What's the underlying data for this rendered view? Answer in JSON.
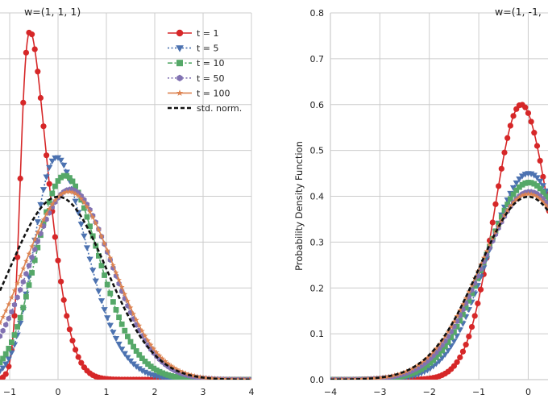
{
  "figure": {
    "background": "#ffffff",
    "grid_color": "#cccccc",
    "axis_color": "#cccccc"
  },
  "chart_data": [
    {
      "type": "line",
      "title": "w=(1, 1, 1)",
      "xlabel": "",
      "ylabel": "",
      "xlim": [
        -1.2,
        4
      ],
      "ylim": [
        0,
        0.8
      ],
      "xticks": [
        -1,
        0,
        1,
        2,
        3,
        4
      ],
      "xtick_labels": [
        "−1",
        "0",
        "1",
        "2",
        "3",
        "4"
      ],
      "yticks": [],
      "grid": true,
      "legend_position": "top-right",
      "series": [
        {
          "name": "t = 1",
          "color": "#d62728",
          "marker": "circle",
          "linestyle": "solid",
          "mean": -0.78,
          "sd": 0.5,
          "skew": 1.0,
          "peak": 0.76
        },
        {
          "name": "t = 5",
          "color": "#4c72b0",
          "marker": "triangle-down",
          "linestyle": "dotted",
          "mean": -0.45,
          "sd": 0.83,
          "skew": 0.5,
          "peak": 0.485
        },
        {
          "name": "t = 10",
          "color": "#55a868",
          "marker": "square",
          "linestyle": "dashdot",
          "mean": -0.33,
          "sd": 0.9,
          "skew": 0.35,
          "peak": 0.445
        },
        {
          "name": "t = 50",
          "color": "#8172b2",
          "marker": "hexagon",
          "linestyle": "dotted",
          "mean": -0.15,
          "sd": 0.96,
          "skew": 0.16,
          "peak": 0.415
        },
        {
          "name": "t = 100",
          "color": "#dd8452",
          "marker": "star",
          "linestyle": "solid",
          "mean": -0.1,
          "sd": 0.98,
          "skew": 0.11,
          "peak": 0.41
        },
        {
          "name": "std. norm.",
          "color": "#111111",
          "marker": "none",
          "linestyle": "dashed",
          "mean": 0,
          "sd": 1,
          "skew": 0,
          "peak": 0.3989
        }
      ]
    },
    {
      "type": "line",
      "title": "w=(1, -1, ",
      "xlabel": "",
      "ylabel": "Probability Density Function",
      "xlim": [
        -4,
        0.4
      ],
      "ylim": [
        0,
        0.8
      ],
      "xticks": [
        -4,
        -3,
        -2,
        -1,
        0
      ],
      "xtick_labels": [
        "−4",
        "−3",
        "−2",
        "−1",
        "0"
      ],
      "yticks": [
        0.0,
        0.1,
        0.2,
        0.3,
        0.4,
        0.5,
        0.6,
        0.7,
        0.8
      ],
      "ytick_labels": [
        "0.0",
        "0.1",
        "0.2",
        "0.3",
        "0.4",
        "0.5",
        "0.6",
        "0.7",
        "0.8"
      ],
      "grid": true,
      "series": [
        {
          "name": "t = 1",
          "color": "#d62728",
          "marker": "circle",
          "linestyle": "solid",
          "mean": -0.45,
          "sd": 0.66,
          "skew": 0.2,
          "peak": 0.6
        },
        {
          "name": "t = 5",
          "color": "#4c72b0",
          "marker": "triangle-down",
          "linestyle": "dotted",
          "mean": -0.3,
          "sd": 0.89,
          "skew": 0.12,
          "peak": 0.45
        },
        {
          "name": "t = 10",
          "color": "#55a868",
          "marker": "square",
          "linestyle": "dashdot",
          "mean": -0.22,
          "sd": 0.93,
          "skew": 0.08,
          "peak": 0.43
        },
        {
          "name": "t = 50",
          "color": "#8172b2",
          "marker": "hexagon",
          "linestyle": "dotted",
          "mean": -0.1,
          "sd": 0.97,
          "skew": 0.04,
          "peak": 0.41
        },
        {
          "name": "t = 100",
          "color": "#dd8452",
          "marker": "star",
          "linestyle": "solid",
          "mean": -0.06,
          "sd": 0.99,
          "skew": 0.02,
          "peak": 0.405
        },
        {
          "name": "std. norm.",
          "color": "#111111",
          "marker": "none",
          "linestyle": "dashed",
          "mean": 0,
          "sd": 1,
          "skew": 0,
          "peak": 0.3989
        }
      ]
    }
  ]
}
